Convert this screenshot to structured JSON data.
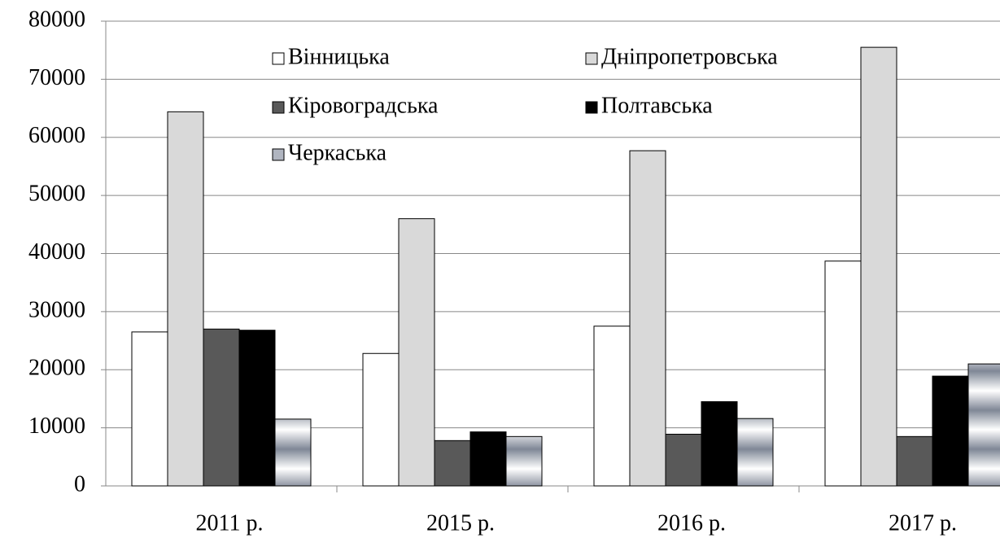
{
  "chart_data": {
    "type": "bar",
    "categories": [
      "2011 р.",
      "2015 р.",
      "2016 р.",
      "2017 р."
    ],
    "series": [
      {
        "name": "Вінницька",
        "color": "#ffffff",
        "values": [
          26500,
          22800,
          27500,
          38700
        ]
      },
      {
        "name": "Дніпропетровська",
        "color": "#d9d9d9",
        "values": [
          64400,
          46000,
          57700,
          75500
        ]
      },
      {
        "name": "Кіровоградська",
        "color": "#595959",
        "values": [
          27000,
          7800,
          8900,
          8500
        ]
      },
      {
        "name": "Полтавська",
        "color": "#000000",
        "values": [
          26800,
          9300,
          14500,
          18900
        ]
      },
      {
        "name": "Черкаська",
        "color": "gradient",
        "values": [
          11500,
          8500,
          11600,
          21000
        ]
      }
    ],
    "ylim": [
      0,
      80000
    ],
    "yticks": [
      0,
      10000,
      20000,
      30000,
      40000,
      50000,
      60000,
      70000,
      80000
    ],
    "grid": true,
    "legend": "top"
  }
}
